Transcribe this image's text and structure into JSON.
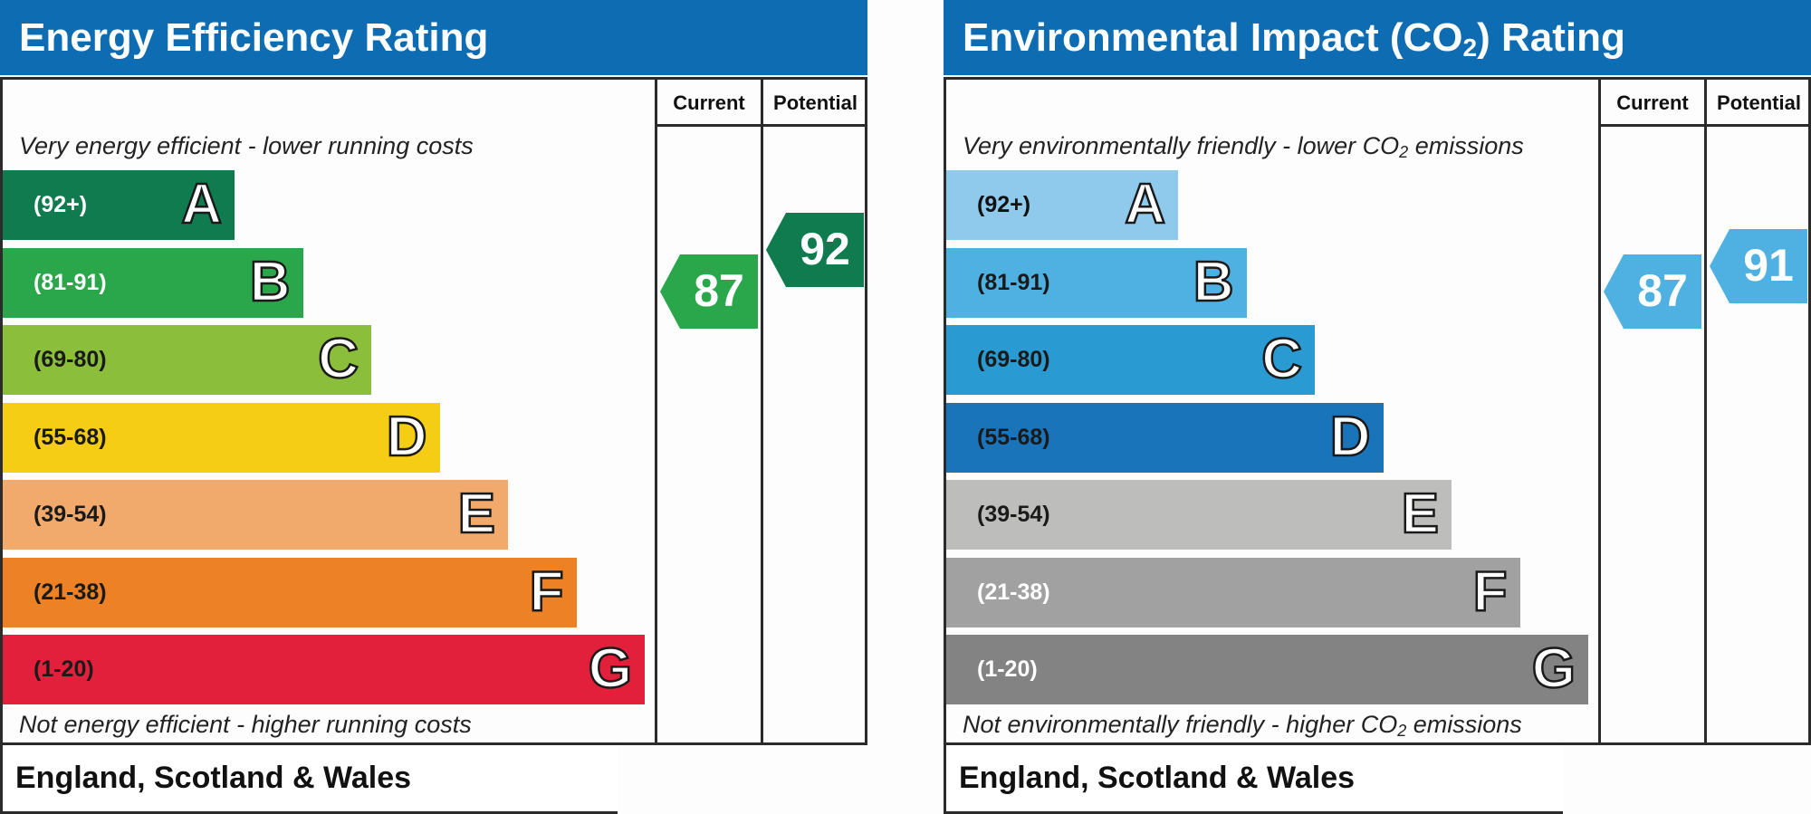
{
  "chart_data": [
    {
      "type": "bar",
      "title": "Energy Efficiency Rating",
      "columns": [
        "Current",
        "Potential"
      ],
      "top_text": "Very energy efficient - lower running costs",
      "bottom_text": "Not energy efficient - higher running costs",
      "footer": "England, Scotland & Wales",
      "bands": [
        {
          "letter": "A",
          "range": "(92+)",
          "min": 92,
          "max": 100,
          "color": "#0f7b4f",
          "range_color": "#ffffff"
        },
        {
          "letter": "B",
          "range": "(81-91)",
          "min": 81,
          "max": 91,
          "color": "#2aa64b",
          "range_color": "#ffffff"
        },
        {
          "letter": "C",
          "range": "(69-80)",
          "min": 69,
          "max": 80,
          "color": "#8bbe3b",
          "range_color": "#1a1a1a"
        },
        {
          "letter": "D",
          "range": "(55-68)",
          "min": 55,
          "max": 68,
          "color": "#f5cd14",
          "range_color": "#1a1a1a"
        },
        {
          "letter": "E",
          "range": "(39-54)",
          "min": 39,
          "max": 54,
          "color": "#f1a96c",
          "range_color": "#1a1a1a"
        },
        {
          "letter": "F",
          "range": "(21-38)",
          "min": 21,
          "max": 38,
          "color": "#ec8126",
          "range_color": "#1a1a1a"
        },
        {
          "letter": "G",
          "range": "(1-20)",
          "min": 1,
          "max": 20,
          "color": "#e2203b",
          "range_color": "#1a1a1a"
        }
      ],
      "current": {
        "value": 87,
        "band": "B",
        "color": "#2aa64b"
      },
      "potential": {
        "value": 92,
        "band": "A",
        "color": "#0f7b4f"
      }
    },
    {
      "type": "bar",
      "title_main": "Environmental Impact (CO",
      "title_sub": "2",
      "title_end": ") Rating",
      "columns": [
        "Current",
        "Potential"
      ],
      "top_text_main": "Very environmentally friendly - lower CO",
      "top_text_sub": "2",
      "top_text_end": " emissions",
      "bottom_text_main": "Not environmentally friendly - higher CO",
      "bottom_text_sub": "2",
      "bottom_text_end": " emissions",
      "footer": "England, Scotland & Wales",
      "bands": [
        {
          "letter": "A",
          "range": "(92+)",
          "min": 92,
          "max": 100,
          "color": "#8fc9ec",
          "range_color": "#111111"
        },
        {
          "letter": "B",
          "range": "(81-91)",
          "min": 81,
          "max": 91,
          "color": "#4fb0e2",
          "range_color": "#1a1a1a"
        },
        {
          "letter": "C",
          "range": "(69-80)",
          "min": 69,
          "max": 80,
          "color": "#2a9ad3",
          "range_color": "#1a1a1a"
        },
        {
          "letter": "D",
          "range": "(55-68)",
          "min": 55,
          "max": 68,
          "color": "#1a74ba",
          "range_color": "#1a1a1a"
        },
        {
          "letter": "E",
          "range": "(39-54)",
          "min": 39,
          "max": 54,
          "color": "#bdbdbb",
          "range_color": "#1a1a1a"
        },
        {
          "letter": "F",
          "range": "(21-38)",
          "min": 21,
          "max": 38,
          "color": "#a1a1a1",
          "range_color": "#ffffff"
        },
        {
          "letter": "G",
          "range": "(1-20)",
          "min": 1,
          "max": 20,
          "color": "#838383",
          "range_color": "#ffffff"
        }
      ],
      "current": {
        "value": 87,
        "band": "B",
        "color": "#4fb0e2"
      },
      "potential": {
        "value": 91,
        "band": "B",
        "color": "#4fb0e2"
      }
    }
  ]
}
